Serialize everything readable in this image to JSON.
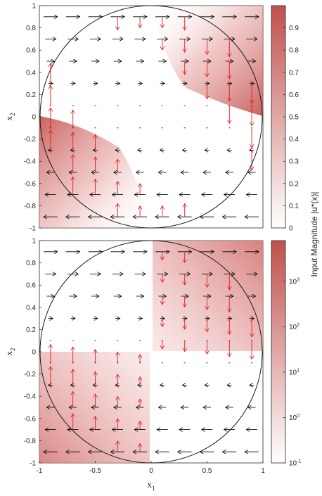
{
  "chart_data": [
    {
      "type": "quiver",
      "panel": "top",
      "xlim": [
        -1,
        1
      ],
      "ylim": [
        -1,
        1
      ],
      "xticks": [],
      "yticks": [
        "1",
        "0.8",
        "0.6",
        "0.4",
        "0.2",
        "0",
        "-0.2",
        "-0.4",
        "-0.6",
        "-0.8",
        "-1"
      ],
      "ylabel_base": "x",
      "ylabel_sub": "2",
      "boundary": "unit circle",
      "shaded_regions": "upper-right diagonal band and lower-left diagonal band inside circle",
      "colorbar": {
        "scale": "linear",
        "range": [
          0,
          1
        ],
        "ticks": [
          "0.9",
          "0.8",
          "0.7",
          "0.6",
          "0.5",
          "0.4",
          "0.3",
          "0.2",
          "0.1",
          "0"
        ],
        "tick_values": [
          0.9,
          0.8,
          0.7,
          0.6,
          0.5,
          0.4,
          0.3,
          0.2,
          0.1,
          0
        ]
      }
    },
    {
      "type": "quiver",
      "panel": "bottom",
      "xlim": [
        -1,
        1
      ],
      "ylim": [
        -1,
        1
      ],
      "xticks": [
        "-1",
        "-0.5",
        "0",
        "0.5",
        "1"
      ],
      "yticks": [
        "1",
        "0.8",
        "0.6",
        "0.4",
        "0.2",
        "0",
        "-0.2",
        "-0.4",
        "-0.6",
        "-0.8",
        "-1"
      ],
      "xlabel_base": "x",
      "xlabel_sub": "1",
      "ylabel_base": "x",
      "ylabel_sub": "2",
      "boundary": "unit circle",
      "shaded_regions": "first quadrant and third quadrant inside circle",
      "colorbar": {
        "scale": "log",
        "range": [
          -1,
          3.9
        ],
        "ticks": [
          {
            "base": "10",
            "exp": "3",
            "log": 3
          },
          {
            "base": "10",
            "exp": "2",
            "log": 2
          },
          {
            "base": "10",
            "exp": "1",
            "log": 1
          },
          {
            "base": "10",
            "exp": "0",
            "log": 0
          },
          {
            "base": "10",
            "exp": "-1",
            "log": -1
          }
        ]
      }
    }
  ],
  "shared_colorbar_label": "Input Magnitude |u*(x)|",
  "colors": {
    "vector_black": "#000000",
    "vector_red": "#e41a1c",
    "colormap_low": "#ffffff",
    "colormap_high": "#c0504d",
    "circle": "#1a1a1a"
  }
}
